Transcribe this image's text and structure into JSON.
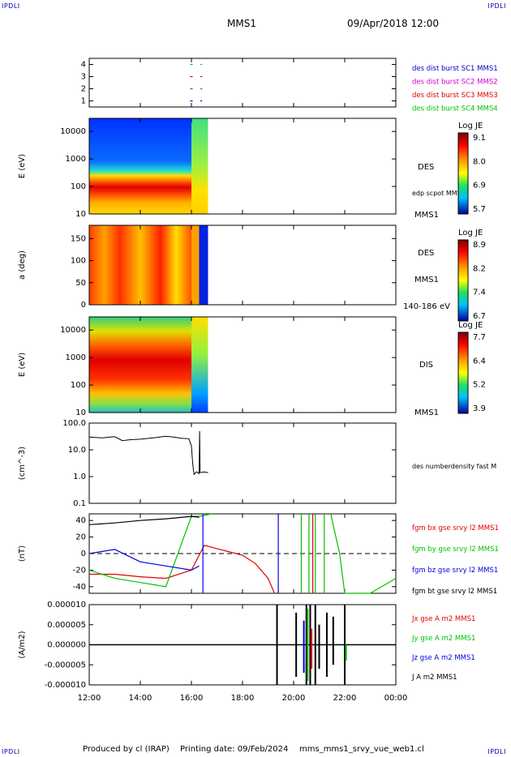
{
  "corners": {
    "tl": "IPDLI",
    "tr": "IPDLI",
    "bl": "IPDLI",
    "br": "IPDLI"
  },
  "header": {
    "spacecraft": "MMS1",
    "datetime": "09/Apr/2018 12:00"
  },
  "footer": {
    "producer": "Produced by cl (IRAP)",
    "printing": "Printing date: 09/Feb/2024",
    "file": "mms_mms1_srvy_vue_web1.cl"
  },
  "x_axis": {
    "ticks": [
      "12:00",
      "14:00",
      "16:00",
      "18:00",
      "20:00",
      "22:00",
      "00:00"
    ]
  },
  "chart_data": [
    {
      "type": "line",
      "name": "burst-availability",
      "ylim": [
        0.5,
        4.5
      ],
      "yticks": [
        "1",
        "2",
        "3",
        "4"
      ],
      "legend": [
        {
          "label": "des dist burst SC1 MMS1",
          "color": "#0000c8"
        },
        {
          "label": "des dist burst SC2 MMS2",
          "color": "#d000d0"
        },
        {
          "label": "des dist burst SC3 MMS3",
          "color": "#e00000"
        },
        {
          "label": "des dist burst SC4 MMS4",
          "color": "#00c000"
        }
      ],
      "segments": [
        {
          "level": 4,
          "t": [
            15.95,
            16.05
          ],
          "color": "#00c000"
        },
        {
          "level": 4,
          "t": [
            16.35,
            16.42
          ],
          "color": "#00c000"
        },
        {
          "level": 3,
          "t": [
            15.95,
            16.05
          ],
          "color": "#e00000"
        },
        {
          "level": 3,
          "t": [
            16.35,
            16.42
          ],
          "color": "#e00000"
        },
        {
          "level": 2,
          "t": [
            15.95,
            16.05
          ],
          "color": "#d000d0"
        },
        {
          "level": 2,
          "t": [
            16.35,
            16.42
          ],
          "color": "#d000d0"
        },
        {
          "level": 1,
          "t": [
            15.95,
            16.05
          ],
          "color": "#0000c8"
        },
        {
          "level": 1,
          "t": [
            16.35,
            16.42
          ],
          "color": "#0000c8"
        }
      ]
    },
    {
      "type": "heatmap",
      "name": "des-energy",
      "ylabel": "E (eV)",
      "yscale": "log",
      "ylim": [
        10,
        30000
      ],
      "yticks": [
        "10",
        "100",
        "1000",
        "10000"
      ],
      "instrument": "DES",
      "annotation": "edp scpot MMS1",
      "probe": "MMS1",
      "colorbar": {
        "title": "Log JE",
        "ticks": [
          "9.1",
          "8.0",
          "6.9",
          "5.7"
        ]
      },
      "data_end": "16:40"
    },
    {
      "type": "heatmap",
      "name": "des-pitch-angle",
      "ylabel": "a (deg)",
      "ylim": [
        0,
        180
      ],
      "yticks": [
        "0",
        "50",
        "100",
        "150"
      ],
      "instrument": "DES",
      "probe": "MMS1",
      "energy_range": "140-186 eV",
      "colorbar": {
        "title": "Log JE",
        "ticks": [
          "8.9",
          "8.2",
          "7.4",
          "6.7"
        ]
      },
      "data_end": "16:40"
    },
    {
      "type": "heatmap",
      "name": "dis-energy",
      "ylabel": "E (eV)",
      "yscale": "log",
      "ylim": [
        10,
        30000
      ],
      "yticks": [
        "10",
        "100",
        "1000",
        "10000"
      ],
      "instrument": "DIS",
      "probe": "MMS1",
      "colorbar": {
        "title": "Log JE",
        "ticks": [
          "7.7",
          "6.4",
          "5.2",
          "3.9"
        ]
      },
      "data_end": "16:40"
    },
    {
      "type": "line",
      "name": "density",
      "ylabel": "(cm^-3)",
      "yscale": "log",
      "ylim": [
        0.1,
        100
      ],
      "yticks": [
        "0.1",
        "1.0",
        "10.0",
        "100.0"
      ],
      "legend": [
        {
          "label": "des numberdensity fast M",
          "color": "#000000"
        }
      ],
      "series": [
        {
          "color": "#000000",
          "x": [
            12.0,
            12.5,
            13.0,
            13.3,
            13.6,
            14.0,
            14.5,
            15.0,
            15.3,
            15.6,
            15.9,
            16.0,
            16.05,
            16.1,
            16.2,
            16.3,
            16.32,
            16.34,
            16.5,
            16.65
          ],
          "y": [
            30,
            28,
            31,
            22,
            24,
            25,
            28,
            32,
            30,
            27,
            26,
            14,
            3,
            1.2,
            1.5,
            1.3,
            50,
            1.4,
            1.5,
            1.4
          ]
        }
      ]
    },
    {
      "type": "line",
      "name": "magnetic-field",
      "ylabel": "(nT)",
      "ylim": [
        -48,
        48
      ],
      "yticks": [
        "-40",
        "-20",
        "0",
        "20",
        "40"
      ],
      "zero_line": true,
      "legend": [
        {
          "label": "fgm bx gse srvy l2 MMS1",
          "color": "#e00000"
        },
        {
          "label": "fgm by gse srvy l2 MMS1",
          "color": "#00c000"
        },
        {
          "label": "fgm bz gse srvy l2 MMS1",
          "color": "#0000e0"
        },
        {
          "label": "fgm bt gse srvy l2 MMS1",
          "color": "#000000"
        }
      ],
      "series": [
        {
          "color": "#e00000",
          "x": [
            12,
            13,
            14,
            15,
            16,
            16.5,
            17,
            17.5,
            18,
            18.5,
            19.0,
            19.25
          ],
          "y": [
            -25,
            -25,
            -28,
            -30,
            -20,
            10,
            6,
            2,
            -2,
            -12,
            -30,
            -48
          ]
        },
        {
          "color": "#00c000",
          "x": [
            12,
            13,
            14,
            15,
            16,
            16.3,
            16.8
          ],
          "y": [
            -20,
            -30,
            -35,
            -40,
            45,
            45,
            48
          ]
        },
        {
          "color": "#00c000",
          "x": [
            21.45,
            21.8,
            22.0,
            22.4,
            23.0,
            24.0
          ],
          "y": [
            48,
            0,
            -48,
            -48,
            -48,
            -30
          ]
        },
        {
          "color": "#0000e0",
          "x": [
            12,
            13,
            14,
            15,
            16,
            16.3
          ],
          "y": [
            0,
            5,
            -10,
            -15,
            -20,
            -15
          ]
        },
        {
          "color": "#000000",
          "x": [
            12,
            13,
            14,
            15,
            16,
            16.3
          ],
          "y": [
            35,
            37,
            40,
            42,
            45,
            44
          ]
        }
      ],
      "vlines": [
        {
          "t": 16.45,
          "color": "#0000e0"
        },
        {
          "t": 19.4,
          "color": "#0000e0"
        },
        {
          "t": 20.3,
          "color": "#00c000"
        },
        {
          "t": 20.6,
          "color": "#00c000"
        },
        {
          "t": 20.75,
          "color": "#e00000"
        },
        {
          "t": 20.85,
          "color": "#00c000"
        },
        {
          "t": 21.2,
          "color": "#00c000"
        }
      ]
    },
    {
      "type": "line",
      "name": "current-density",
      "ylabel": "(A/m2)",
      "ylim": [
        -1e-05,
        1e-05
      ],
      "yticks": [
        "-0.000010",
        "-0.000005",
        "0.000000",
        "0.000005",
        "0.000010"
      ],
      "legend": [
        {
          "label": "Jx gse A m2 MMS1",
          "color": "#e00000"
        },
        {
          "label": "Jy gse A m2 MMS1",
          "color": "#00c000"
        },
        {
          "label": "Jz gse A m2 MMS1",
          "color": "#0000e0"
        },
        {
          "label": "J A m2 MMS1",
          "color": "#000000"
        }
      ],
      "spikes": [
        {
          "t": 19.35,
          "lo": -1e-05,
          "hi": 1e-05,
          "color": "#000000"
        },
        {
          "t": 20.1,
          "lo": -8e-06,
          "hi": 8e-06,
          "color": "#000000"
        },
        {
          "t": 20.4,
          "lo": -7e-06,
          "hi": 6e-06,
          "color": "#0000e0"
        },
        {
          "t": 20.5,
          "lo": -1e-05,
          "hi": 1e-05,
          "color": "#000000"
        },
        {
          "t": 20.55,
          "lo": -9e-06,
          "hi": 9e-06,
          "color": "#00c000"
        },
        {
          "t": 20.65,
          "lo": -1e-05,
          "hi": 1e-05,
          "color": "#000000"
        },
        {
          "t": 20.7,
          "lo": -6e-06,
          "hi": 4e-06,
          "color": "#e00000"
        },
        {
          "t": 20.85,
          "lo": -1e-05,
          "hi": 1e-05,
          "color": "#000000"
        },
        {
          "t": 21.0,
          "lo": -6e-06,
          "hi": 5e-06,
          "color": "#000000"
        },
        {
          "t": 21.3,
          "lo": -8e-06,
          "hi": 8e-06,
          "color": "#000000"
        },
        {
          "t": 21.55,
          "lo": -5e-06,
          "hi": 7e-06,
          "color": "#000000"
        },
        {
          "t": 22.0,
          "lo": -1e-05,
          "hi": 1e-05,
          "color": "#000000"
        },
        {
          "t": 22.05,
          "lo": -4e-06,
          "hi": 0.0,
          "color": "#00c000"
        }
      ]
    }
  ]
}
